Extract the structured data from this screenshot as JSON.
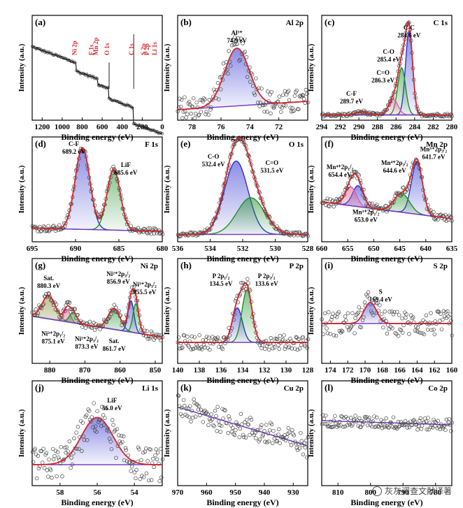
{
  "figure": {
    "colors": {
      "raw": "#555555",
      "envelope": "#d62728",
      "background": "#7a3ec8",
      "blue": "#2d2fd0",
      "green": "#1f8f2a",
      "pink": "#e0609a",
      "olive": "#8a8a3a"
    },
    "watermark": "灰灰调查文献译著"
  },
  "chart_data": [
    {
      "id": "a",
      "type": "line",
      "panel_label": "(a)",
      "title": "",
      "xlabel": "Binding energy (eV)",
      "ylabel": "Intensity (a.u.)",
      "xlim": [
        1300,
        0
      ],
      "xticks": [
        1200,
        1000,
        800,
        600,
        400,
        200,
        0
      ],
      "peaks": [
        {
          "label": "Mn 2p",
          "x": 642,
          "rotate": true
        },
        {
          "label": "O 1s",
          "x": 531,
          "rotate": true
        },
        {
          "label": "C 1s",
          "x": 285,
          "rotate": true
        },
        {
          "label": "P 2p",
          "x": 134,
          "rotate": true
        },
        {
          "label": "F 1s",
          "x": 688,
          "rotate": true
        },
        {
          "label": "Ni 2p",
          "x": 856,
          "rotate": true
        },
        {
          "label": "Li 1s",
          "x": 56,
          "rotate": true
        },
        {
          "label": "S 2p",
          "x": 169,
          "rotate": true
        }
      ]
    },
    {
      "id": "b",
      "type": "line",
      "panel_label": "(b)",
      "title": "Al 2p",
      "xlabel": "Binding energy (eV)",
      "ylabel": "Intensity (a.u.)",
      "xlim": [
        79,
        70
      ],
      "xticks": [
        78,
        76,
        74,
        72
      ],
      "annotations": [
        {
          "text": "Al³⁺",
          "text2": "74.9 eV",
          "x": 74.9,
          "y": 0.8
        }
      ],
      "components": [
        {
          "center": 74.9,
          "fwhm": 2.0,
          "height": 0.55,
          "color": "blue"
        }
      ],
      "baseline": [
        0.1,
        0.18
      ],
      "noise": 0.12
    },
    {
      "id": "c",
      "type": "line",
      "panel_label": "(c)",
      "title": "C 1s",
      "xlabel": "Binding energy (eV)",
      "ylabel": "Intensity (a.u.)",
      "xlim": [
        294,
        280
      ],
      "xticks": [
        294,
        292,
        290,
        288,
        286,
        284,
        282,
        280
      ],
      "annotations": [
        {
          "text": "C-C",
          "text2": "284.6 eV",
          "x": 284.6,
          "y": 0.85
        },
        {
          "text": "C-O",
          "text2": "285.4 eV",
          "x": 286.8,
          "y": 0.62
        },
        {
          "text": "C=O",
          "text2": "286.3 eV",
          "x": 287.4,
          "y": 0.42
        },
        {
          "text": "C-F",
          "text2": "289.7 eV",
          "x": 290.8,
          "y": 0.22
        }
      ],
      "components": [
        {
          "center": 284.6,
          "fwhm": 0.9,
          "height": 0.8,
          "color": "blue"
        },
        {
          "center": 285.4,
          "fwhm": 1.0,
          "height": 0.45,
          "color": "green"
        },
        {
          "center": 286.3,
          "fwhm": 1.2,
          "height": 0.15,
          "color": "pink"
        },
        {
          "center": 289.7,
          "fwhm": 1.5,
          "height": 0.03,
          "color": "olive"
        }
      ],
      "baseline": [
        0.05,
        0.05
      ],
      "noise": 0.015
    },
    {
      "id": "d",
      "type": "line",
      "panel_label": "(d)",
      "title": "F 1s",
      "xlabel": "Binding energy (eV)",
      "ylabel": "Intensity (a.u.)",
      "xlim": [
        695,
        680
      ],
      "xticks": [
        695,
        690,
        685,
        680
      ],
      "annotations": [
        {
          "text": "C-F",
          "text2": "689.2 eV",
          "x": 690.2,
          "y": 0.9
        },
        {
          "text": "LiF",
          "text2": "685.6 eV",
          "x": 684.2,
          "y": 0.7
        }
      ],
      "components": [
        {
          "center": 689.2,
          "fwhm": 2.0,
          "height": 0.78,
          "color": "blue"
        },
        {
          "center": 685.6,
          "fwhm": 1.8,
          "height": 0.58,
          "color": "green"
        }
      ],
      "baseline": [
        0.13,
        0.1
      ],
      "noise": 0.03
    },
    {
      "id": "e",
      "type": "line",
      "panel_label": "(e)",
      "title": "O 1s",
      "xlabel": "Binding energy (eV)",
      "ylabel": "Intensity (a.u.)",
      "xlim": [
        536,
        528
      ],
      "xticks": [
        536,
        534,
        532,
        530,
        528
      ],
      "annotations": [
        {
          "text": "C-O",
          "text2": "532.4 eV",
          "x": 533.8,
          "y": 0.78
        },
        {
          "text": "C=O",
          "text2": "531.5 eV",
          "x": 530.2,
          "y": 0.72
        }
      ],
      "components": [
        {
          "center": 532.4,
          "fwhm": 1.7,
          "height": 0.7,
          "color": "blue"
        },
        {
          "center": 531.5,
          "fwhm": 2.0,
          "height": 0.35,
          "color": "green"
        }
      ],
      "baseline": [
        0.07,
        0.07
      ],
      "noise": 0.02
    },
    {
      "id": "f",
      "type": "line",
      "panel_label": "(f)",
      "title": "Mn 2p",
      "xlabel": "Binding energy (eV)",
      "ylabel": "Intensity (a.u.)",
      "xlim": [
        660,
        635
      ],
      "xticks": [
        660,
        655,
        650,
        645,
        640,
        635
      ],
      "annotations": [
        {
          "text": "Mn³⁺2p₃/₂",
          "text2": "641.7 eV",
          "x": 638.5,
          "y": 0.85
        },
        {
          "text": "Mn⁴⁺2p₃/₂",
          "text2": "644.6 eV",
          "x": 646.0,
          "y": 0.72
        },
        {
          "text": "Mn⁴⁺2p₁/₂",
          "text2": "654.4 eV",
          "x": 656.5,
          "y": 0.68
        },
        {
          "text": "Mn³⁺2p₁/₂",
          "text2": "653.0 eV",
          "x": 651.5,
          "y": 0.25
        }
      ],
      "components": [
        {
          "center": 641.7,
          "fwhm": 2.5,
          "height": 0.5,
          "color": "blue"
        },
        {
          "center": 644.6,
          "fwhm": 3.5,
          "height": 0.18,
          "color": "green"
        },
        {
          "center": 653.0,
          "fwhm": 2.5,
          "height": 0.2,
          "color": "blue"
        },
        {
          "center": 654.4,
          "fwhm": 2.5,
          "height": 0.18,
          "color": "pink"
        }
      ],
      "baseline": [
        0.38,
        0.22
      ],
      "noise": 0.04
    },
    {
      "id": "g",
      "type": "line",
      "panel_label": "(g)",
      "title": "Ni 2p",
      "xlabel": "Binding energy (eV)",
      "ylabel": "Intensity (a.u.)",
      "xlim": [
        885,
        848
      ],
      "xticks": [
        880,
        870,
        860,
        850
      ],
      "annotations": [
        {
          "text": "Sat.",
          "text2": "880.3 eV",
          "x": 880.3,
          "y": 0.78
        },
        {
          "text": "Ni²⁺2p₃/₂",
          "text2": "856.9 eV",
          "x": 860.5,
          "y": 0.82
        },
        {
          "text": "Ni³⁺2p₃/₂",
          "text2": "855.5 eV",
          "x": 853.0,
          "y": 0.72
        },
        {
          "text": "Ni³⁺2p₁/₂",
          "text2": "875.1 eV",
          "x": 879.0,
          "y": 0.25
        },
        {
          "text": "Ni²⁺2p₁/₂",
          "text2": "873.3 eV",
          "x": 869.5,
          "y": 0.2
        },
        {
          "text": "Sat.",
          "text2": "861.7 eV",
          "x": 861.7,
          "y": 0.18
        }
      ],
      "components": [
        {
          "center": 880.3,
          "fwhm": 4.5,
          "height": 0.22,
          "color": "olive"
        },
        {
          "center": 875.1,
          "fwhm": 2.2,
          "height": 0.12,
          "color": "pink"
        },
        {
          "center": 873.3,
          "fwhm": 2.5,
          "height": 0.1,
          "color": "green"
        },
        {
          "center": 861.7,
          "fwhm": 4.0,
          "height": 0.2,
          "color": "green"
        },
        {
          "center": 856.9,
          "fwhm": 2.0,
          "height": 0.3,
          "color": "blue"
        },
        {
          "center": 855.5,
          "fwhm": 2.0,
          "height": 0.28,
          "color": "green"
        }
      ],
      "baseline": [
        0.45,
        0.25
      ],
      "noise": 0.04
    },
    {
      "id": "h",
      "type": "line",
      "panel_label": "(h)",
      "title": "P 2p",
      "xlabel": "Binding energy (eV)",
      "ylabel": "Intensity (a.u.)",
      "xlim": [
        140,
        128
      ],
      "xticks": [
        140,
        138,
        136,
        134,
        132,
        130,
        128
      ],
      "annotations": [
        {
          "text": "P 2p₁/₂",
          "text2": "134.5 eV",
          "x": 136.0,
          "y": 0.8
        },
        {
          "text": "P 2p₃/₂",
          "text2": "133.6 eV",
          "x": 131.8,
          "y": 0.8
        }
      ],
      "components": [
        {
          "center": 134.5,
          "fwhm": 1.1,
          "height": 0.33,
          "color": "blue"
        },
        {
          "center": 133.6,
          "fwhm": 1.1,
          "height": 0.5,
          "color": "green"
        }
      ],
      "baseline": [
        0.2,
        0.2
      ],
      "noise": 0.07
    },
    {
      "id": "i",
      "type": "line",
      "panel_label": "(i)",
      "title": "S 2p",
      "xlabel": "Binding energy (eV)",
      "ylabel": "Intensity (a.u.)",
      "xlim": [
        175,
        160
      ],
      "xticks": [
        174,
        172,
        170,
        168,
        166,
        164,
        162,
        160
      ],
      "annotations": [
        {
          "text": "S",
          "text2": "169.4 eV",
          "x": 168.2,
          "y": 0.65
        }
      ],
      "components": [
        {
          "center": 169.4,
          "fwhm": 1.7,
          "height": 0.2,
          "color": "blue"
        }
      ],
      "baseline": [
        0.38,
        0.38
      ],
      "noise": 0.12
    },
    {
      "id": "j",
      "type": "line",
      "panel_label": "(j)",
      "title": "Li 1s",
      "xlabel": "Binding energy (eV)",
      "ylabel": "Intensity (a.u.)",
      "xlim": [
        59.5,
        52.5
      ],
      "xticks": [
        58,
        56,
        54
      ],
      "annotations": [
        {
          "text": "LiF",
          "text2": "56.0 eV",
          "x": 55.2,
          "y": 0.78
        }
      ],
      "components": [
        {
          "center": 56.0,
          "fwhm": 2.0,
          "height": 0.45,
          "color": "blue"
        }
      ],
      "baseline": [
        0.2,
        0.2
      ],
      "noise": 0.16
    },
    {
      "id": "k",
      "type": "scatter",
      "panel_label": "(k)",
      "title": "Cu 2p",
      "xlabel": "Binding energy (eV)",
      "ylabel": "Intensity (a.u.)",
      "xlim": [
        970,
        925
      ],
      "xticks": [
        970,
        960,
        950,
        940,
        930
      ],
      "components": [],
      "baseline": [
        0.75,
        0.38
      ],
      "noise": 0.12
    },
    {
      "id": "l",
      "type": "scatter",
      "panel_label": "(l)",
      "title": "Co 2p",
      "xlabel": "Binding energy (eV)",
      "ylabel": "Intensity (a.u.)",
      "xlim": [
        815,
        775
      ],
      "xticks": [
        810,
        800,
        790,
        780
      ],
      "components": [],
      "baseline": [
        0.62,
        0.58
      ],
      "noise": 0.06
    }
  ]
}
